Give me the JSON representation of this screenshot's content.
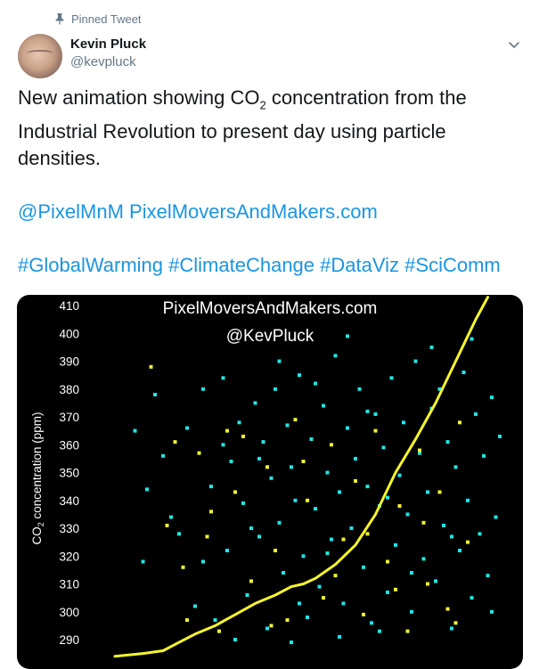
{
  "pinned_label": "Pinned Tweet",
  "icons": {
    "pin": "pin-icon",
    "chevron": "chevron-down-icon"
  },
  "author": {
    "name": "Kevin Pluck",
    "handle": "@kevpluck"
  },
  "tweet": {
    "text_before": "New animation showing CO",
    "text_sub": "2",
    "text_after": " concentration from the Industrial Revolution to present day using particle densities.",
    "mentions": [
      "@PixelMnM"
    ],
    "link": "PixelMoversAndMakers.com",
    "hashtags": [
      "#GlobalWarming",
      "#ClimateChange",
      "#DataViz",
      "#SciComm"
    ]
  },
  "colors": {
    "link": "#1b95e0",
    "muted": "#657786",
    "particle_cyan": "#22e6e6",
    "particle_yellow": "#f2f233",
    "curve": "#f7f72a"
  },
  "media": {
    "watermark_site": "PixelMoversAndMakers.com",
    "watermark_handle": "@KevPluck"
  },
  "chart_data": {
    "type": "line",
    "ylabel_prefix": "CO",
    "ylabel_sub": "2",
    "ylabel_suffix": " concentration (ppm)",
    "y_ticks": [
      410,
      400,
      390,
      380,
      370,
      360,
      350,
      340,
      330,
      320,
      310,
      300,
      290
    ],
    "ylim": [
      285,
      413
    ],
    "series": [
      {
        "points": [
          [
            0.0,
            284
          ],
          [
            0.07,
            285
          ],
          [
            0.12,
            286
          ],
          [
            0.16,
            289
          ],
          [
            0.2,
            292
          ],
          [
            0.25,
            295
          ],
          [
            0.3,
            299
          ],
          [
            0.35,
            303
          ],
          [
            0.4,
            306
          ],
          [
            0.44,
            309
          ],
          [
            0.47,
            310
          ],
          [
            0.5,
            312
          ],
          [
            0.55,
            317
          ],
          [
            0.6,
            324
          ],
          [
            0.65,
            335
          ],
          [
            0.7,
            350
          ],
          [
            0.75,
            362
          ],
          [
            0.8,
            375
          ],
          [
            0.85,
            390
          ],
          [
            0.9,
            405
          ],
          [
            0.93,
            413
          ]
        ]
      }
    ],
    "particles_cyan": [
      [
        0.05,
        365
      ],
      [
        0.07,
        318
      ],
      [
        0.08,
        344
      ],
      [
        0.1,
        378
      ],
      [
        0.12,
        356
      ],
      [
        0.14,
        334
      ],
      [
        0.16,
        328
      ],
      [
        0.18,
        366
      ],
      [
        0.2,
        302
      ],
      [
        0.22,
        380
      ],
      [
        0.24,
        345
      ],
      [
        0.25,
        297
      ],
      [
        0.27,
        384
      ],
      [
        0.28,
        322
      ],
      [
        0.29,
        354
      ],
      [
        0.31,
        368
      ],
      [
        0.32,
        339
      ],
      [
        0.33,
        306
      ],
      [
        0.35,
        375
      ],
      [
        0.36,
        327
      ],
      [
        0.37,
        361
      ],
      [
        0.38,
        294
      ],
      [
        0.39,
        348
      ],
      [
        0.4,
        380
      ],
      [
        0.41,
        332
      ],
      [
        0.42,
        314
      ],
      [
        0.43,
        367
      ],
      [
        0.44,
        352
      ],
      [
        0.45,
        340
      ],
      [
        0.46,
        385
      ],
      [
        0.47,
        320
      ],
      [
        0.48,
        298
      ],
      [
        0.49,
        362
      ],
      [
        0.5,
        337
      ],
      [
        0.51,
        309
      ],
      [
        0.52,
        374
      ],
      [
        0.53,
        350
      ],
      [
        0.54,
        326
      ],
      [
        0.55,
        392
      ],
      [
        0.56,
        343
      ],
      [
        0.57,
        303
      ],
      [
        0.58,
        366
      ],
      [
        0.59,
        330
      ],
      [
        0.6,
        355
      ],
      [
        0.61,
        380
      ],
      [
        0.62,
        316
      ],
      [
        0.63,
        345
      ],
      [
        0.64,
        296
      ],
      [
        0.65,
        371
      ],
      [
        0.66,
        338
      ],
      [
        0.67,
        359
      ],
      [
        0.68,
        307
      ],
      [
        0.69,
        384
      ],
      [
        0.7,
        324
      ],
      [
        0.71,
        349
      ],
      [
        0.72,
        368
      ],
      [
        0.73,
        335
      ],
      [
        0.74,
        300
      ],
      [
        0.75,
        390
      ],
      [
        0.76,
        357
      ],
      [
        0.77,
        319
      ],
      [
        0.78,
        343
      ],
      [
        0.79,
        373
      ],
      [
        0.8,
        311
      ],
      [
        0.81,
        380
      ],
      [
        0.82,
        331
      ],
      [
        0.83,
        361
      ],
      [
        0.84,
        294
      ],
      [
        0.85,
        352
      ],
      [
        0.86,
        322
      ],
      [
        0.87,
        386
      ],
      [
        0.88,
        340
      ],
      [
        0.89,
        305
      ],
      [
        0.9,
        371
      ],
      [
        0.91,
        328
      ],
      [
        0.92,
        356
      ],
      [
        0.93,
        313
      ],
      [
        0.94,
        377
      ],
      [
        0.95,
        334
      ],
      [
        0.96,
        363
      ],
      [
        0.22,
        318
      ],
      [
        0.27,
        360
      ],
      [
        0.34,
        330
      ],
      [
        0.41,
        390
      ],
      [
        0.46,
        303
      ],
      [
        0.53,
        321
      ],
      [
        0.58,
        399
      ],
      [
        0.63,
        372
      ],
      [
        0.68,
        341
      ],
      [
        0.74,
        314
      ],
      [
        0.79,
        395
      ],
      [
        0.84,
        327
      ],
      [
        0.89,
        398
      ],
      [
        0.94,
        300
      ],
      [
        0.3,
        290
      ],
      [
        0.36,
        355
      ],
      [
        0.44,
        289
      ],
      [
        0.5,
        382
      ],
      [
        0.56,
        291
      ],
      [
        0.66,
        293
      ]
    ],
    "particles_yellow": [
      [
        0.09,
        388
      ],
      [
        0.13,
        331
      ],
      [
        0.15,
        361
      ],
      [
        0.17,
        316
      ],
      [
        0.21,
        357
      ],
      [
        0.23,
        327
      ],
      [
        0.26,
        293
      ],
      [
        0.28,
        365
      ],
      [
        0.3,
        343
      ],
      [
        0.34,
        311
      ],
      [
        0.38,
        352
      ],
      [
        0.4,
        322
      ],
      [
        0.43,
        297
      ],
      [
        0.45,
        369
      ],
      [
        0.48,
        340
      ],
      [
        0.52,
        305
      ],
      [
        0.54,
        360
      ],
      [
        0.57,
        326
      ],
      [
        0.6,
        347
      ],
      [
        0.62,
        299
      ],
      [
        0.65,
        365
      ],
      [
        0.68,
        318
      ],
      [
        0.71,
        338
      ],
      [
        0.73,
        293
      ],
      [
        0.76,
        358
      ],
      [
        0.78,
        310
      ],
      [
        0.81,
        343
      ],
      [
        0.83,
        301
      ],
      [
        0.86,
        368
      ],
      [
        0.88,
        325
      ],
      [
        0.18,
        297
      ],
      [
        0.24,
        336
      ],
      [
        0.32,
        363
      ],
      [
        0.39,
        295
      ],
      [
        0.47,
        354
      ],
      [
        0.55,
        313
      ],
      [
        0.63,
        328
      ],
      [
        0.7,
        308
      ],
      [
        0.77,
        332
      ],
      [
        0.85,
        296
      ]
    ]
  }
}
